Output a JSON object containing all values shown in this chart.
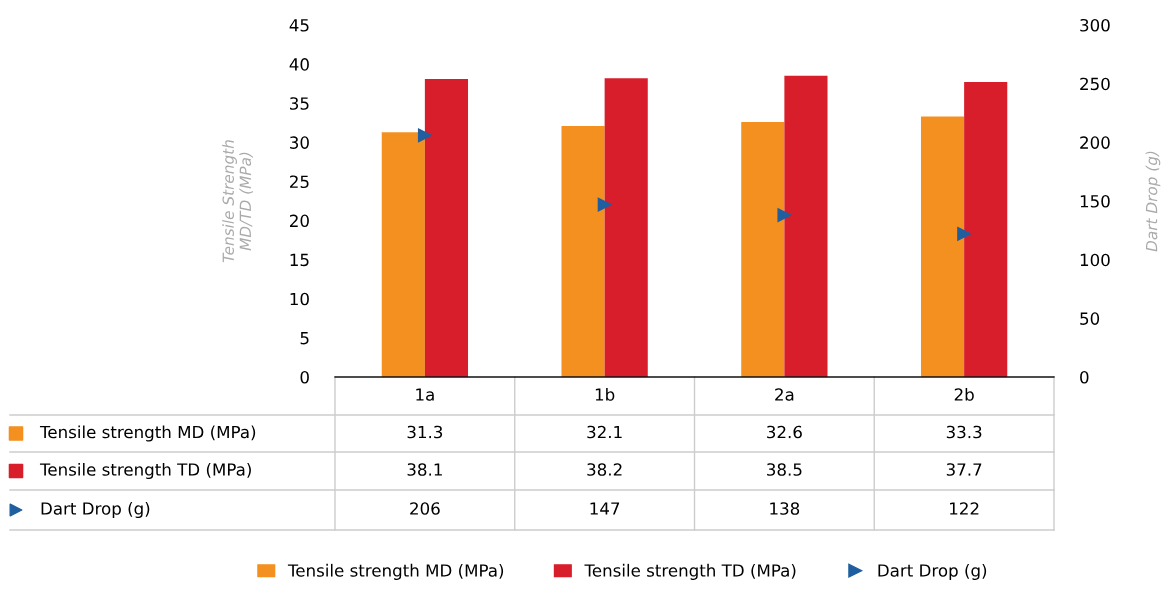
{
  "chart_data": {
    "type": "bar",
    "categories": [
      "1a",
      "1b",
      "2a",
      "2b"
    ],
    "ylabel": "Tensile Strength\nMD/TD (MPa)",
    "y2label": "Dart Drop (g)",
    "ylim": [
      0,
      45
    ],
    "yticks": [
      0,
      5,
      10,
      15,
      20,
      25,
      30,
      35,
      40,
      45
    ],
    "y2lim": [
      0,
      300
    ],
    "y2ticks": [
      0,
      50,
      100,
      150,
      200,
      250,
      300
    ],
    "series": [
      {
        "name": "Tensile strength MD (MPa)",
        "color": "#f39020",
        "values": [
          31.3,
          32.1,
          32.6,
          33.3
        ]
      },
      {
        "name": "Tensile strength TD (MPa)",
        "color": "#d81e2a",
        "values": [
          38.1,
          38.2,
          38.5,
          37.7
        ]
      },
      {
        "name": "Dart Drop (g)",
        "type": "scatter",
        "axis": "y2",
        "marker": "triangle",
        "color": "#1f5fa0",
        "values": [
          206,
          147,
          138,
          122
        ]
      }
    ],
    "data_labels": true,
    "grid": false,
    "legend": "bottom"
  }
}
